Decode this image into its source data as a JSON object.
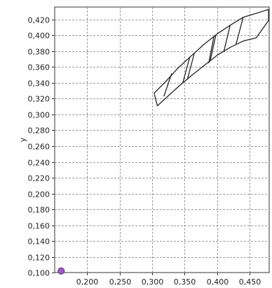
{
  "chart_data": {
    "type": "scatter",
    "title": "",
    "xlabel": "",
    "ylabel": "y",
    "xlim": [
      0.15,
      0.48
    ],
    "ylim": [
      0.1,
      0.436
    ],
    "grid": true,
    "x_ticks": [
      0.2,
      0.25,
      0.3,
      0.35,
      0.4,
      0.45
    ],
    "x_tick_labels": [
      "0,200",
      "0,250",
      "0,300",
      "0,350",
      "0,400",
      "0,450"
    ],
    "y_ticks": [
      0.1,
      0.12,
      0.14,
      0.16,
      0.18,
      0.2,
      0.22,
      0.24,
      0.26,
      0.28,
      0.3,
      0.32,
      0.34,
      0.36,
      0.38,
      0.4,
      0.42
    ],
    "y_tick_labels": [
      "0,100",
      "0,120",
      "0,140",
      "0,160",
      "0,180",
      "0,200",
      "0,220",
      "0,240",
      "0,260",
      "0,280",
      "0,300",
      "0,320",
      "0,340",
      "0,360",
      "0,380",
      "0,400",
      "0,420"
    ],
    "series": [
      {
        "kind": "band-outline",
        "upper": [
          [
            0.303,
            0.327
          ],
          [
            0.32,
            0.341
          ],
          [
            0.34,
            0.359
          ],
          [
            0.36,
            0.374
          ],
          [
            0.38,
            0.389
          ],
          [
            0.4,
            0.402
          ],
          [
            0.42,
            0.413
          ],
          [
            0.44,
            0.423
          ],
          [
            0.46,
            0.428
          ],
          [
            0.479,
            0.433
          ]
        ],
        "lower": [
          [
            0.479,
            0.419
          ],
          [
            0.46,
            0.397
          ],
          [
            0.44,
            0.393
          ],
          [
            0.42,
            0.385
          ],
          [
            0.4,
            0.375
          ],
          [
            0.38,
            0.362
          ],
          [
            0.36,
            0.349
          ],
          [
            0.34,
            0.335
          ],
          [
            0.32,
            0.32
          ],
          [
            0.308,
            0.311
          ]
        ],
        "color": "#222222"
      },
      {
        "kind": "hatch-lines",
        "segments": [
          [
            [
              0.33,
              0.352
            ],
            [
              0.318,
              0.323
            ]
          ],
          [
            [
              0.358,
              0.373
            ],
            [
              0.347,
              0.34
            ]
          ],
          [
            [
              0.365,
              0.378
            ],
            [
              0.354,
              0.344
            ]
          ],
          [
            [
              0.395,
              0.399
            ],
            [
              0.387,
              0.365
            ]
          ],
          [
            [
              0.398,
              0.401
            ],
            [
              0.389,
              0.367
            ]
          ],
          [
            [
              0.42,
              0.413
            ],
            [
              0.41,
              0.379
            ]
          ],
          [
            [
              0.44,
              0.423
            ],
            [
              0.429,
              0.389
            ]
          ]
        ],
        "color": "#222222"
      },
      {
        "kind": "point",
        "points": [
          [
            0.16,
            0.102
          ]
        ],
        "color": "#a25ac8"
      }
    ]
  }
}
